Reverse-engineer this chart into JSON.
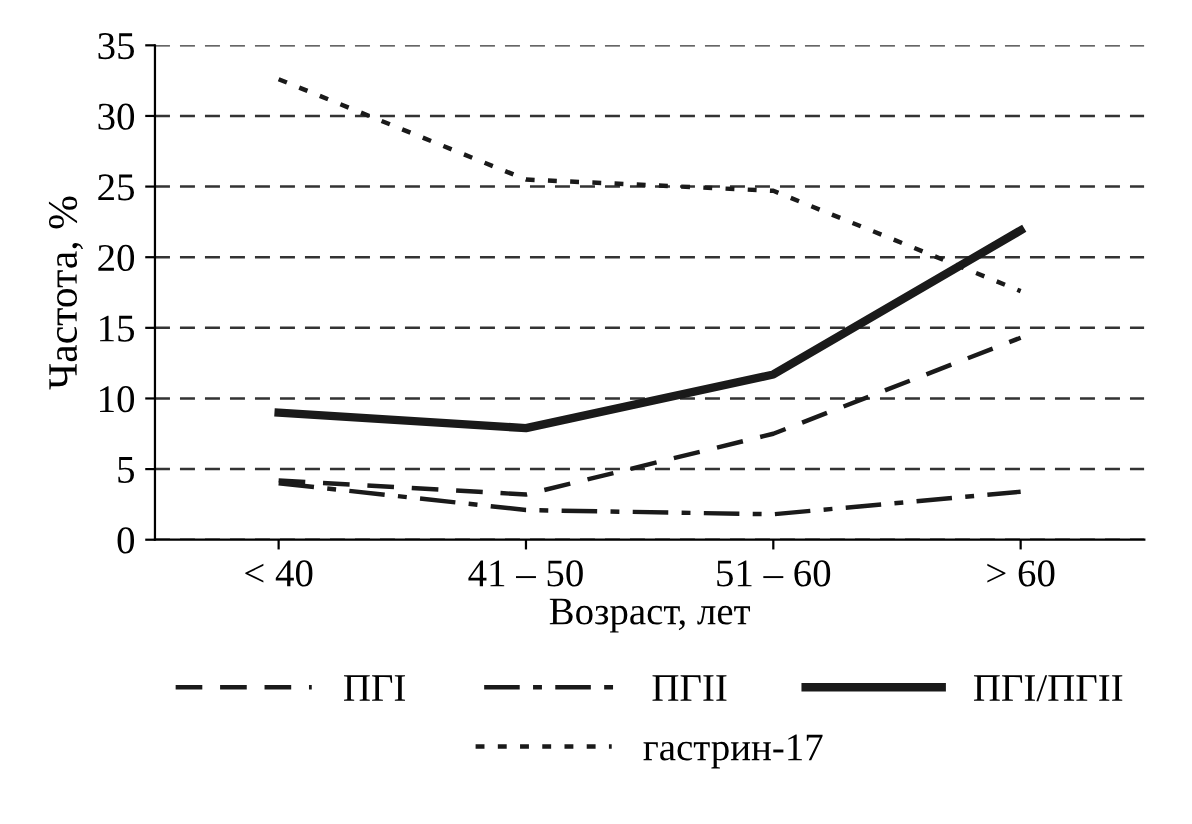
{
  "chart_data": {
    "type": "line",
    "xlabel": "Возраст, лет",
    "ylabel": "Частота, %",
    "categories": [
      "< 40",
      "41 – 50",
      "51 – 60",
      "> 60"
    ],
    "series": [
      {
        "name": "ПГI",
        "color": "#1a1a1a",
        "line_style": "dashed",
        "values": [
          4.2,
          3.2,
          7.5,
          14.3
        ]
      },
      {
        "name": "ПГII",
        "color": "#1a1a1a",
        "line_style": "dashdot",
        "values": [
          4.0,
          2.1,
          1.8,
          3.4
        ]
      },
      {
        "name": "ПГI/ПГII",
        "color": "#1a1a1a",
        "line_style": "solid",
        "values": [
          9.0,
          7.9,
          11.7,
          21.9
        ]
      },
      {
        "name": "гастрин-17",
        "color": "#1a1a1a",
        "line_style": "dotted",
        "values": [
          32.6,
          25.5,
          24.7,
          17.6
        ]
      }
    ],
    "ylim": [
      0,
      35
    ],
    "yticks": [
      0,
      5,
      10,
      15,
      20,
      25,
      30,
      35
    ],
    "grid": "y",
    "legend": "bottom",
    "marker": "none"
  }
}
